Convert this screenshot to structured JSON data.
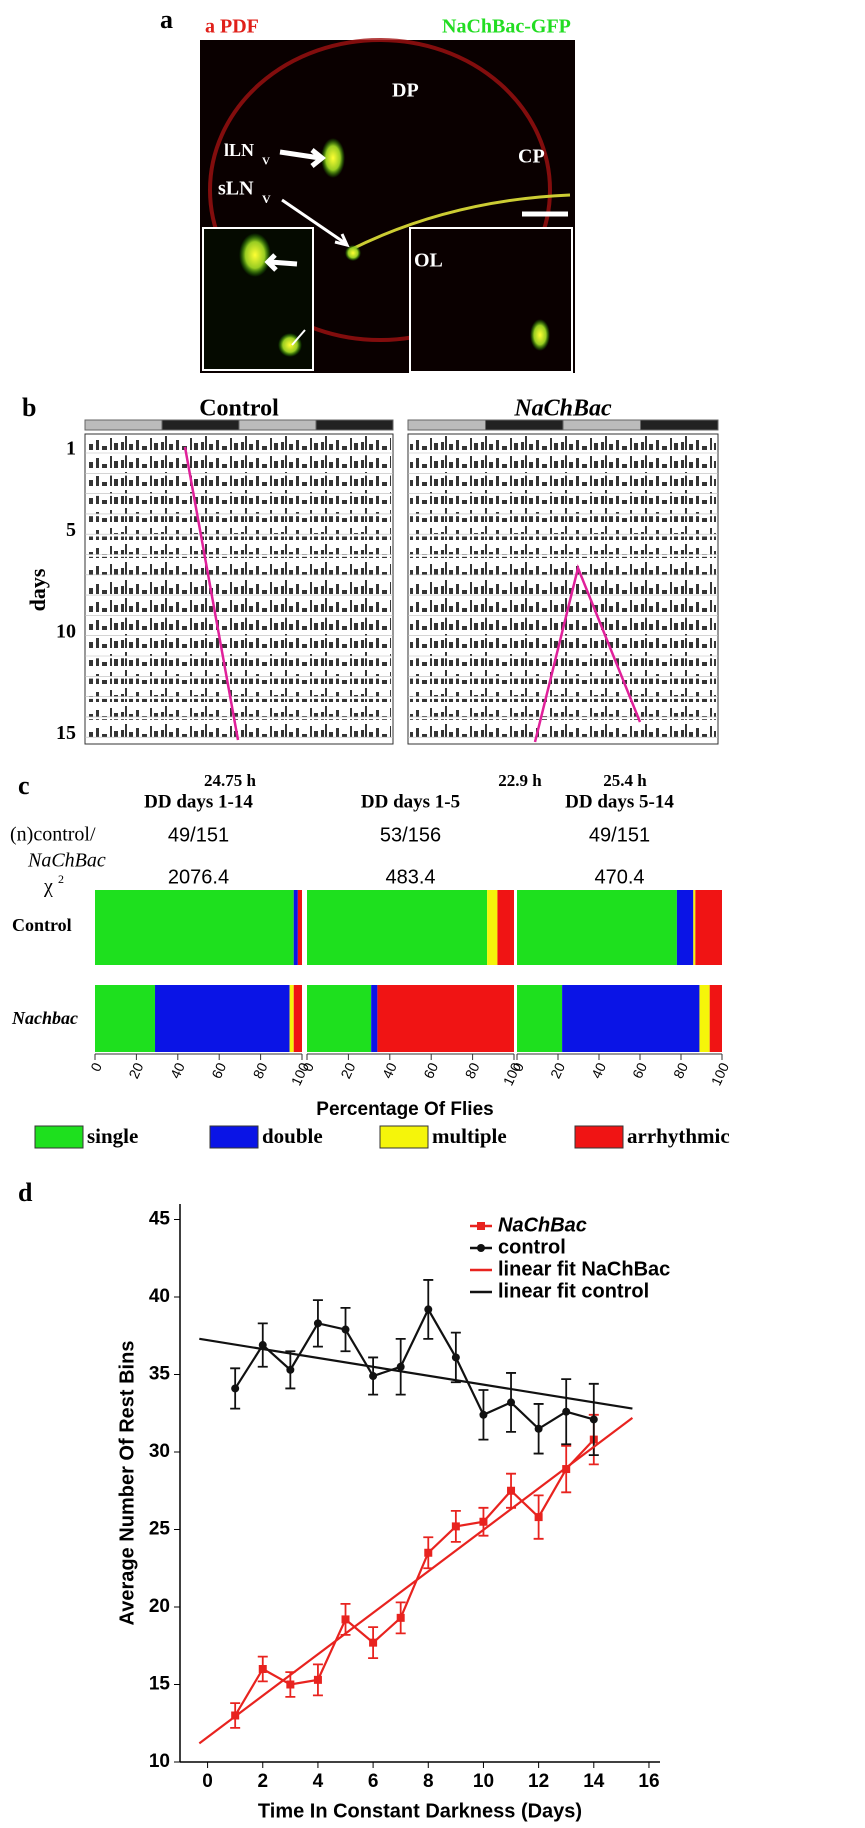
{
  "panel_a": {
    "letter": "a",
    "pdf": "a PDF",
    "gfp": "NaChBac-GFP",
    "dp": "DP",
    "cp": "CP",
    "ol": "OL",
    "lln": "lLN",
    "lln_sub": "V",
    "sln": "sLN",
    "sln_sub": "V"
  },
  "panel_b": {
    "letter": "b",
    "ylabel": "days",
    "dayticks": [
      1,
      5,
      10,
      15
    ],
    "actograms": [
      {
        "title": "Control",
        "periods": [
          "24.75 h"
        ]
      },
      {
        "title": "NaChBac",
        "periods": [
          "22.9 h",
          "25.4 h"
        ]
      }
    ]
  },
  "chart_data": [
    {
      "type": "stacked-bar-h",
      "letter": "c",
      "row_header_n": "(n)control/",
      "row_header_n2": "NaChBac",
      "row_header_chi": "χ",
      "chi_sup": "2",
      "xlabel": "Percentage Of Flies",
      "xlim": [
        0,
        100
      ],
      "xticks": [
        0,
        20,
        40,
        60,
        80,
        100
      ],
      "categories": [
        "Control",
        "Nachbac"
      ],
      "panels": [
        {
          "title": "DD days 1-14",
          "n": "49/151",
          "chi2": 2076.4,
          "series": [
            {
              "name": "single",
              "color": "#1ee01e",
              "values": [
                96,
                29
              ]
            },
            {
              "name": "double",
              "color": "#0a14e6",
              "values": [
                2,
                65
              ]
            },
            {
              "name": "multiple",
              "color": "#f5f50a",
              "values": [
                0,
                2
              ]
            },
            {
              "name": "arrhythmic",
              "color": "#f01414",
              "values": [
                2,
                4
              ]
            }
          ]
        },
        {
          "title": "DD days 1-5",
          "n": "53/156",
          "chi2": 483.4,
          "series": [
            {
              "name": "single",
              "color": "#1ee01e",
              "values": [
                87,
                31
              ]
            },
            {
              "name": "double",
              "color": "#0a14e6",
              "values": [
                0,
                3
              ]
            },
            {
              "name": "multiple",
              "color": "#f5f50a",
              "values": [
                5,
                0
              ]
            },
            {
              "name": "arrhythmic",
              "color": "#f01414",
              "values": [
                8,
                66
              ]
            }
          ]
        },
        {
          "title": "DD days 5-14",
          "n": "49/151",
          "chi2": 470.4,
          "series": [
            {
              "name": "single",
              "color": "#1ee01e",
              "values": [
                78,
                22
              ]
            },
            {
              "name": "double",
              "color": "#0a14e6",
              "values": [
                8,
                67
              ]
            },
            {
              "name": "multiple",
              "color": "#f5f50a",
              "values": [
                1,
                5
              ]
            },
            {
              "name": "arrhythmic",
              "color": "#f01414",
              "values": [
                13,
                6
              ]
            }
          ]
        }
      ]
    },
    {
      "type": "line",
      "letter": "d",
      "xlabel": "Time In Constant Darkness (Days)",
      "ylabel": "Average Number Of Rest Bins",
      "xlim": [
        -1,
        16.4
      ],
      "ylim": [
        10,
        46
      ],
      "xticks": [
        0,
        2,
        4,
        6,
        8,
        10,
        12,
        14,
        16
      ],
      "yticks": [
        10,
        15,
        20,
        25,
        30,
        35,
        40,
        45
      ],
      "series": [
        {
          "name": "NaChBac",
          "color": "#e8231f",
          "marker": "square",
          "x": [
            1,
            2,
            3,
            4,
            5,
            6,
            7,
            8,
            9,
            10,
            11,
            12,
            13,
            14
          ],
          "values": [
            13.0,
            16.0,
            15.0,
            15.3,
            19.2,
            17.7,
            19.3,
            23.5,
            25.2,
            25.5,
            27.5,
            25.8,
            28.9,
            30.8
          ],
          "errors": [
            0.8,
            0.8,
            0.8,
            1.0,
            1.0,
            1.0,
            1.0,
            1.0,
            1.0,
            0.9,
            1.1,
            1.4,
            1.5,
            1.6
          ]
        },
        {
          "name": "control",
          "color": "#111111",
          "marker": "circle",
          "x": [
            1,
            2,
            3,
            4,
            5,
            6,
            7,
            8,
            9,
            10,
            11,
            12,
            13,
            14
          ],
          "values": [
            34.1,
            36.9,
            35.3,
            38.3,
            37.9,
            34.9,
            35.5,
            39.2,
            36.1,
            32.4,
            33.2,
            31.5,
            32.6,
            32.1
          ],
          "errors": [
            1.3,
            1.4,
            1.2,
            1.5,
            1.4,
            1.2,
            1.8,
            1.9,
            1.6,
            1.6,
            1.9,
            1.6,
            2.1,
            2.3
          ]
        },
        {
          "name": "linear fit NaChBac",
          "color": "#e8231f",
          "x": [
            -0.3,
            15.4
          ],
          "values": [
            11.2,
            32.2
          ]
        },
        {
          "name": "linear fit control",
          "color": "#111111",
          "x": [
            -0.3,
            15.4
          ],
          "values": [
            37.3,
            32.8
          ]
        }
      ]
    }
  ]
}
